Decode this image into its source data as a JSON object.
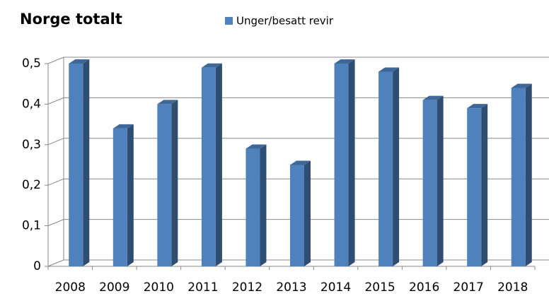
{
  "chart_data": {
    "type": "bar3d",
    "title": "Norge totalt",
    "categories": [
      "2008",
      "2009",
      "2010",
      "2011",
      "2012",
      "2013",
      "2014",
      "2015",
      "2016",
      "2017",
      "2018"
    ],
    "series": [
      {
        "name": "Unger/besatt revir",
        "color": "#4f81bd",
        "values": [
          0.5,
          0.34,
          0.4,
          0.49,
          0.29,
          0.25,
          0.5,
          0.48,
          0.41,
          0.39,
          0.44
        ]
      }
    ],
    "ylim": [
      0,
      0.5
    ],
    "yticks": [
      0,
      {
        "value": 0.1,
        "label": "0,1"
      },
      {
        "value": 0.2,
        "label": "0,2"
      },
      {
        "value": 0.3,
        "label": "0,3"
      },
      {
        "value": 0.4,
        "label": "0,4"
      },
      {
        "value": 0.5,
        "label": "0,5"
      }
    ],
    "grid": true,
    "legend": "top"
  }
}
